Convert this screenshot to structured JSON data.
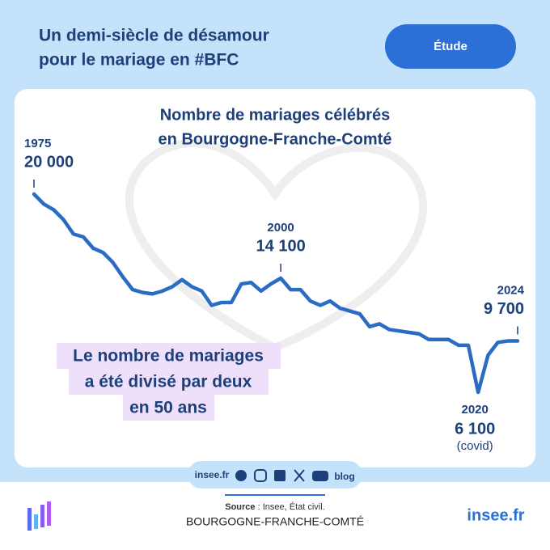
{
  "header": {
    "title_lines": [
      "Un demi-siècle de désamour",
      "pour le mariage en #BFC"
    ],
    "button": "Étude"
  },
  "chart_data": {
    "type": "line",
    "title_lines": [
      "Nombre de mariages célébrés",
      "en Bourgogne-Franche-Comté"
    ],
    "x": [
      1975,
      1976,
      1977,
      1978,
      1979,
      1980,
      1981,
      1982,
      1983,
      1984,
      1985,
      1986,
      1987,
      1988,
      1989,
      1990,
      1991,
      1992,
      1993,
      1994,
      1995,
      1996,
      1997,
      1998,
      1999,
      2000,
      2001,
      2002,
      2003,
      2004,
      2005,
      2006,
      2007,
      2008,
      2009,
      2010,
      2011,
      2012,
      2013,
      2014,
      2015,
      2016,
      2017,
      2018,
      2019,
      2020,
      2021,
      2022,
      2023,
      2024
    ],
    "values": [
      20000,
      19300,
      18900,
      18200,
      17200,
      17000,
      16200,
      15900,
      15200,
      14200,
      13300,
      13100,
      13000,
      13200,
      13500,
      14000,
      13500,
      13200,
      12200,
      12400,
      12400,
      13700,
      13800,
      13200,
      13700,
      14100,
      13300,
      13300,
      12500,
      12200,
      12500,
      12000,
      11800,
      11600,
      10700,
      10900,
      10500,
      10400,
      10300,
      10200,
      9800,
      9800,
      9800,
      9400,
      9400,
      6100,
      8700,
      9600,
      9700,
      9700
    ],
    "value_labels": [
      "20 000",
      null,
      null,
      null,
      null,
      null,
      null,
      null,
      null,
      null,
      null,
      null,
      null,
      null,
      null,
      null,
      null,
      null,
      null,
      null,
      null,
      null,
      null,
      null,
      null,
      "14 100",
      null,
      null,
      null,
      null,
      null,
      null,
      null,
      null,
      null,
      null,
      null,
      null,
      null,
      null,
      null,
      null,
      null,
      null,
      null,
      "6 100",
      null,
      null,
      null,
      "9 700"
    ],
    "color": "#2a6cc4",
    "annotations": [
      "(covid)"
    ],
    "callout_lines": [
      "Le nombre de mariages",
      "a été divisé par deux",
      "en 50 ans"
    ]
  },
  "footer": {
    "site": "insee.fr",
    "blog": "blog",
    "source_label": "Source",
    "source_text": " : Insee, État civil.",
    "region": "BOURGOGNE-FRANCHE-COMTÉ",
    "brand": "insee.fr"
  }
}
